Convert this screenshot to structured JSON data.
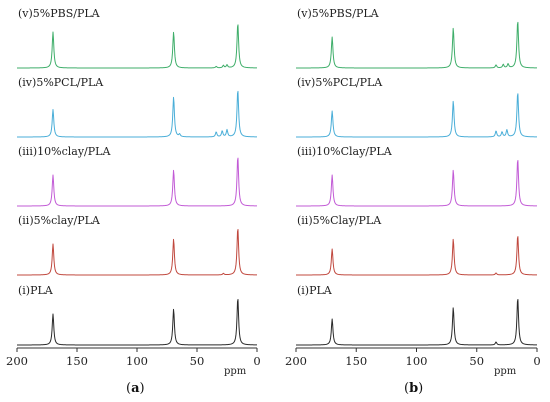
{
  "chart_data": [
    {
      "type": "line",
      "panel_label": {
        "open": "(",
        "letter": "a",
        "close": ")"
      },
      "x_unit": "ppm",
      "xlim": [
        200,
        0
      ],
      "x_ticks": [
        "200",
        "150",
        "100",
        "50",
        "0"
      ],
      "grid": false,
      "series": [
        {
          "name": "(v)5%PBS/PLA",
          "color": "#3fae6a",
          "peaks": [
            {
              "x": 170,
              "h": 0.72
            },
            {
              "x": 69.5,
              "h": 0.72
            },
            {
              "x": 16,
              "h": 0.9
            },
            {
              "x": 28,
              "h": 0.05
            },
            {
              "x": 25,
              "h": 0.06
            },
            {
              "x": 34,
              "h": 0.03
            }
          ]
        },
        {
          "name": "(iv)5%PCL/PLA",
          "color": "#4aaed8",
          "peaks": [
            {
              "x": 170,
              "h": 0.55
            },
            {
              "x": 69.5,
              "h": 0.8
            },
            {
              "x": 16,
              "h": 0.95
            },
            {
              "x": 34,
              "h": 0.1
            },
            {
              "x": 29,
              "h": 0.12
            },
            {
              "x": 25,
              "h": 0.14
            },
            {
              "x": 64.5,
              "h": 0.05
            }
          ]
        },
        {
          "name": "(iii)10%clay/PLA",
          "color": "#c25bd6",
          "peaks": [
            {
              "x": 170,
              "h": 0.62
            },
            {
              "x": 69.5,
              "h": 0.72
            },
            {
              "x": 16,
              "h": 1.0
            }
          ]
        },
        {
          "name": "(ii)5%clay/PLA",
          "color": "#c0483e",
          "peaks": [
            {
              "x": 170,
              "h": 0.62
            },
            {
              "x": 69.5,
              "h": 0.72
            },
            {
              "x": 16,
              "h": 0.95
            },
            {
              "x": 28,
              "h": 0.03
            }
          ]
        },
        {
          "name": "(i)PLA",
          "color": "#2a2a2a",
          "peaks": [
            {
              "x": 170,
              "h": 0.62
            },
            {
              "x": 69.5,
              "h": 0.72
            },
            {
              "x": 16,
              "h": 0.95
            }
          ]
        }
      ]
    },
    {
      "type": "line",
      "panel_label": {
        "open": "(",
        "letter": "b",
        "close": ")"
      },
      "x_unit": "ppm",
      "xlim": [
        200,
        0
      ],
      "x_ticks": [
        "200",
        "150",
        "100",
        "50",
        "0"
      ],
      "grid": false,
      "series": [
        {
          "name": "(v)5%PBS/PLA",
          "color": "#3fae6a",
          "peaks": [
            {
              "x": 170,
              "h": 0.62
            },
            {
              "x": 69.5,
              "h": 0.8
            },
            {
              "x": 16,
              "h": 0.95
            },
            {
              "x": 34,
              "h": 0.06
            },
            {
              "x": 28,
              "h": 0.07
            },
            {
              "x": 24,
              "h": 0.08
            }
          ]
        },
        {
          "name": "(iv)5%PCL/PLA",
          "color": "#4aaed8",
          "peaks": [
            {
              "x": 170,
              "h": 0.52
            },
            {
              "x": 69.5,
              "h": 0.72
            },
            {
              "x": 16,
              "h": 0.9
            },
            {
              "x": 34,
              "h": 0.12
            },
            {
              "x": 29,
              "h": 0.1
            },
            {
              "x": 25,
              "h": 0.14
            }
          ]
        },
        {
          "name": "(iii)10%Clay/PLA",
          "color": "#c25bd6",
          "peaks": [
            {
              "x": 170,
              "h": 0.62
            },
            {
              "x": 69.5,
              "h": 0.72
            },
            {
              "x": 16,
              "h": 0.95
            }
          ]
        },
        {
          "name": "(ii)5%Clay/PLA",
          "color": "#c0483e",
          "peaks": [
            {
              "x": 170,
              "h": 0.52
            },
            {
              "x": 69.5,
              "h": 0.72
            },
            {
              "x": 16,
              "h": 0.8
            },
            {
              "x": 34,
              "h": 0.04
            }
          ]
        },
        {
          "name": "(i)PLA",
          "color": "#2a2a2a",
          "peaks": [
            {
              "x": 170,
              "h": 0.52
            },
            {
              "x": 69.5,
              "h": 0.75
            },
            {
              "x": 16,
              "h": 0.95
            },
            {
              "x": 34,
              "h": 0.06
            }
          ]
        }
      ]
    }
  ]
}
